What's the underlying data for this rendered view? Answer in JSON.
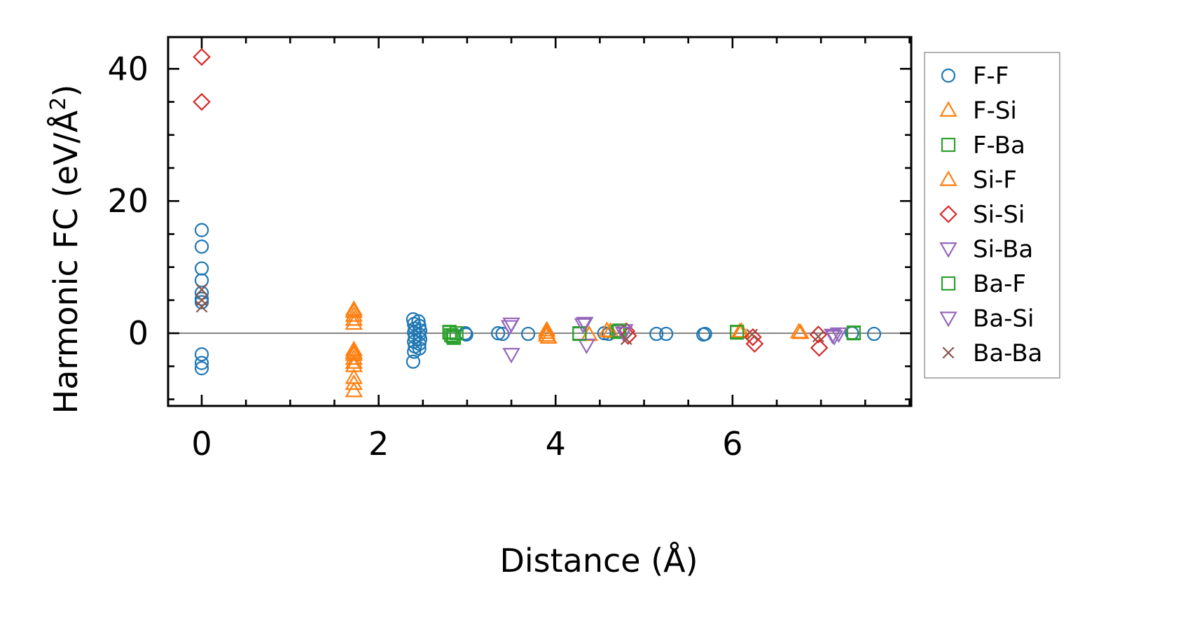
{
  "chart_data": {
    "type": "scatter",
    "title": "",
    "xlabel": "Distance (Å)",
    "ylabel_main": "Harmonic FC (eV/Å",
    "ylabel_sup": "2",
    "ylabel_end": ")",
    "xlim": [
      -0.38,
      8.02
    ],
    "ylim": [
      -11,
      44.8
    ],
    "xticks": [
      0,
      2,
      4,
      6
    ],
    "xtick_labels": [
      "0",
      "2",
      "4",
      "6"
    ],
    "yticks": [
      0,
      20,
      40
    ],
    "ytick_labels": [
      "0",
      "20",
      "40"
    ],
    "x_minor_step": 0.5,
    "y_minor_step": 5,
    "zero_line": true,
    "legend_position": "outside-right",
    "series": [
      {
        "name": "F-F",
        "marker": "circle",
        "color": "#1f77b4",
        "points": [
          [
            0,
            15.6
          ],
          [
            0,
            13.1
          ],
          [
            0,
            9.8
          ],
          [
            0,
            8.0
          ],
          [
            0,
            6.1
          ],
          [
            0,
            5.2
          ],
          [
            0,
            4.7
          ],
          [
            0,
            -3.2
          ],
          [
            0,
            -4.5
          ],
          [
            0,
            -5.3
          ],
          [
            2.39,
            2.1
          ],
          [
            2.45,
            1.8
          ],
          [
            2.4,
            1.4
          ],
          [
            2.46,
            1.1
          ],
          [
            2.41,
            0.7
          ],
          [
            2.47,
            0.4
          ],
          [
            2.4,
            0.1
          ],
          [
            2.46,
            -0.2
          ],
          [
            2.41,
            -0.6
          ],
          [
            2.47,
            -0.9
          ],
          [
            2.4,
            -1.3
          ],
          [
            2.46,
            -1.6
          ],
          [
            2.41,
            -2.0
          ],
          [
            2.46,
            -2.3
          ],
          [
            2.4,
            -2.8
          ],
          [
            2.39,
            -4.3
          ],
          [
            2.98,
            0.0
          ],
          [
            2.99,
            -0.2
          ],
          [
            3.35,
            0.0
          ],
          [
            3.4,
            -0.1
          ],
          [
            3.69,
            -0.1
          ],
          [
            4.55,
            0.0
          ],
          [
            4.6,
            -0.1
          ],
          [
            5.14,
            -0.1
          ],
          [
            5.25,
            -0.1
          ],
          [
            5.67,
            -0.2
          ],
          [
            5.69,
            -0.1
          ],
          [
            7.35,
            0.0
          ],
          [
            7.6,
            -0.1
          ]
        ]
      },
      {
        "name": "F-Si",
        "marker": "triangle-up",
        "color": "#ff7f0e",
        "points": [
          [
            1.72,
            3.3
          ],
          [
            1.72,
            2.7
          ],
          [
            1.72,
            2.1
          ],
          [
            1.72,
            1.5
          ],
          [
            1.72,
            -2.5
          ],
          [
            1.72,
            -3.2
          ],
          [
            1.72,
            -3.8
          ],
          [
            1.72,
            -4.4
          ],
          [
            1.72,
            -4.9
          ],
          [
            1.72,
            -6.7
          ],
          [
            1.72,
            -7.6
          ],
          [
            1.72,
            -8.7
          ],
          [
            3.9,
            0.5
          ],
          [
            3.9,
            -0.3
          ],
          [
            3.92,
            -0.6
          ],
          [
            4.38,
            -0.2
          ],
          [
            4.62,
            0.3
          ],
          [
            6.1,
            0.3
          ],
          [
            6.75,
            0.2
          ]
        ]
      },
      {
        "name": "F-Ba",
        "marker": "square",
        "color": "#2ca02c",
        "points": [
          [
            2.8,
            0.2
          ],
          [
            2.82,
            -0.3
          ],
          [
            2.85,
            -0.7
          ],
          [
            2.88,
            0.0
          ],
          [
            4.27,
            0.0
          ],
          [
            4.7,
            0.2
          ],
          [
            6.05,
            0.1
          ],
          [
            7.37,
            0.1
          ]
        ]
      },
      {
        "name": "Si-F",
        "marker": "triangle-up",
        "color": "#ff7f0e",
        "points": [
          [
            1.72,
            3.6
          ],
          [
            1.72,
            -2.9
          ],
          [
            3.9,
            0.1
          ],
          [
            4.58,
            0.4
          ],
          [
            6.08,
            0.2
          ],
          [
            6.77,
            0.1
          ]
        ]
      },
      {
        "name": "Si-Si",
        "marker": "diamond",
        "color": "#d62728",
        "points": [
          [
            0,
            41.8
          ],
          [
            0,
            35.0
          ],
          [
            4.8,
            0.3
          ],
          [
            4.82,
            -0.4
          ],
          [
            6.23,
            -0.6
          ],
          [
            6.25,
            -1.6
          ],
          [
            6.97,
            -0.2
          ],
          [
            6.98,
            -2.2
          ]
        ]
      },
      {
        "name": "Si-Ba",
        "marker": "triangle-down",
        "color": "#9467bd",
        "points": [
          [
            3.5,
            1.4
          ],
          [
            3.5,
            -3.2
          ],
          [
            4.33,
            1.5
          ],
          [
            4.35,
            -1.8
          ],
          [
            4.78,
            0.4
          ],
          [
            7.15,
            -0.5
          ]
        ]
      },
      {
        "name": "Ba-F",
        "marker": "square",
        "color": "#2ca02c",
        "points": [
          [
            2.8,
            0.1
          ],
          [
            2.84,
            -0.5
          ],
          [
            4.27,
            -0.1
          ],
          [
            4.72,
            0.4
          ],
          [
            6.05,
            0.2
          ],
          [
            7.37,
            0.0
          ]
        ]
      },
      {
        "name": "Ba-Si",
        "marker": "triangle-down",
        "color": "#9467bd",
        "points": [
          [
            3.48,
            1.0
          ],
          [
            4.31,
            1.3
          ],
          [
            4.77,
            0.0
          ],
          [
            7.13,
            -0.3
          ],
          [
            7.2,
            -0.1
          ]
        ]
      },
      {
        "name": "Ba-Ba",
        "marker": "x",
        "color": "#8c564b",
        "points": [
          [
            0,
            6.6
          ],
          [
            0,
            5.0
          ],
          [
            0,
            4.0
          ],
          [
            4.8,
            -0.9
          ],
          [
            6.22,
            -0.2
          ],
          [
            6.97,
            -0.5
          ]
        ]
      }
    ]
  }
}
